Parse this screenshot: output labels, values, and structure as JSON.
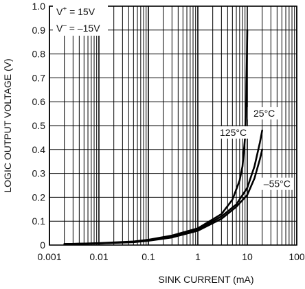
{
  "chart_data": {
    "type": "line",
    "title": "",
    "xlabel": "SINK CURRENT (mA)",
    "ylabel": "LOGIC OUTPUT VOLTAGE (V)",
    "x_scale": "log",
    "xlim": [
      0.001,
      100
    ],
    "ylim": [
      0,
      1.0
    ],
    "grid": true,
    "x_ticks": [
      "0.001",
      "0.01",
      "0.1",
      "1",
      "10",
      "100"
    ],
    "y_ticks": [
      "0",
      "0.1",
      "0.2",
      "0.3",
      "0.4",
      "0.5",
      "0.6",
      "0.7",
      "0.8",
      "0.9",
      "1.0"
    ],
    "conditions": {
      "line1": {
        "prefix": "V",
        "sup": "+",
        "suffix": " = 15V"
      },
      "line2": {
        "prefix": "V",
        "sup": "–",
        "suffix": " = –15V"
      }
    },
    "series": [
      {
        "name": "125°C",
        "label_text": "125°C",
        "points": [
          [
            0.002,
            0.004
          ],
          [
            0.01,
            0.008
          ],
          [
            0.05,
            0.015
          ],
          [
            0.1,
            0.022
          ],
          [
            0.3,
            0.04
          ],
          [
            1,
            0.07
          ],
          [
            3,
            0.13
          ],
          [
            5,
            0.19
          ],
          [
            7,
            0.27
          ],
          [
            8,
            0.33
          ],
          [
            9,
            0.45
          ],
          [
            9.5,
            0.6
          ],
          [
            10,
            0.9
          ]
        ]
      },
      {
        "name": "25°C",
        "label_text": "25°C",
        "points": [
          [
            0.002,
            0.004
          ],
          [
            0.01,
            0.007
          ],
          [
            0.05,
            0.013
          ],
          [
            0.1,
            0.019
          ],
          [
            0.3,
            0.035
          ],
          [
            1,
            0.065
          ],
          [
            3,
            0.12
          ],
          [
            6,
            0.17
          ],
          [
            10,
            0.24
          ],
          [
            14,
            0.33
          ],
          [
            18,
            0.43
          ],
          [
            20,
            0.48
          ]
        ]
      },
      {
        "name": "–55°C",
        "label_text": "–55°C",
        "points": [
          [
            0.002,
            0.004
          ],
          [
            0.01,
            0.007
          ],
          [
            0.05,
            0.012
          ],
          [
            0.1,
            0.018
          ],
          [
            0.3,
            0.032
          ],
          [
            1,
            0.06
          ],
          [
            3,
            0.11
          ],
          [
            6,
            0.16
          ],
          [
            10,
            0.21
          ],
          [
            14,
            0.28
          ],
          [
            18,
            0.36
          ],
          [
            20,
            0.4
          ]
        ]
      }
    ]
  }
}
